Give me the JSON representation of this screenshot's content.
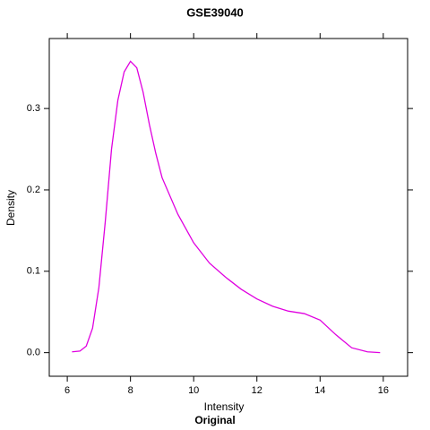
{
  "chart_data": {
    "type": "line",
    "title": "GSE39040",
    "xlabel": "Intensity",
    "sublabel": "Original",
    "ylabel": "Density",
    "x": [
      6.15,
      6.4,
      6.6,
      6.8,
      7.0,
      7.2,
      7.4,
      7.6,
      7.8,
      8.0,
      8.2,
      8.4,
      8.6,
      8.8,
      9.0,
      9.5,
      10.0,
      10.5,
      11.0,
      11.5,
      12.0,
      12.5,
      13.0,
      13.5,
      14.0,
      14.5,
      15.0,
      15.5,
      15.9
    ],
    "series": [
      {
        "name": "Original",
        "color": "#e000e0",
        "values": [
          0.001,
          0.002,
          0.008,
          0.03,
          0.08,
          0.16,
          0.25,
          0.31,
          0.345,
          0.358,
          0.35,
          0.32,
          0.28,
          0.245,
          0.215,
          0.17,
          0.135,
          0.11,
          0.093,
          0.078,
          0.066,
          0.057,
          0.051,
          0.048,
          0.04,
          0.022,
          0.006,
          0.001,
          0.0
        ]
      }
    ],
    "xlim": [
      5.43,
      16.77
    ],
    "ylim": [
      -0.029,
      0.386
    ],
    "xticks": [
      6,
      8,
      10,
      12,
      14,
      16
    ],
    "yticks": [
      {
        "value": 0,
        "label": "0.0"
      },
      0.1,
      0.2,
      0.3
    ]
  }
}
